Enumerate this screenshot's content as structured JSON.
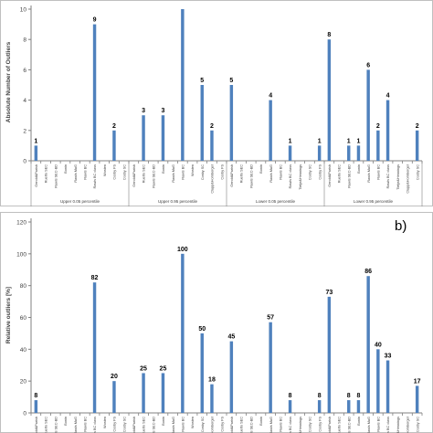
{
  "chart_data": [
    {
      "type": "bar",
      "panel_label": "",
      "ylabel": "Absolute Number of Outliers",
      "xlabel": "",
      "ylim": [
        0,
        10
      ],
      "yticks": [
        0,
        2,
        4,
        6,
        8,
        10
      ],
      "grid": false,
      "bar_color": "#4f81bd",
      "groups": [
        {
          "label": "Upper 0.05 percentile",
          "start": 0,
          "end": 9
        },
        {
          "label": "Upper 0.95 percentile",
          "start": 10,
          "end": 19
        },
        {
          "label": "Lower 0.05 percentile",
          "start": 20,
          "end": 29
        },
        {
          "label": "Lower 0.95 percentile",
          "start": 30,
          "end": 39
        }
      ],
      "categories": [
        "Gerold&Parish",
        "Ruerto SEC",
        "Rawls SEC-BD",
        "Bonin",
        "Rawls MaG",
        "Rawls BC",
        "Rawls BC class",
        "Wosten",
        "Cosby FS",
        "Cosby SC",
        "Gerold&Parish",
        "Ruerto SEC",
        "Rawls SEC-BD",
        "Bonin",
        "Rawls MaG",
        "Rawls BC",
        "Wosten",
        "Cosby SC",
        "Clapp&Hornberger",
        "Cosby FS",
        "Gerold&Parish",
        "Ruerto SEC",
        "Rawls SEC-BD",
        "Bonin",
        "Rawls MaG",
        "Rawls BC",
        "Rawls BC class",
        "Tietje&Hennings",
        "Cosby SC",
        "Cosby FS",
        "Gerold&Parish",
        "Ruerto SEC",
        "Rawls SEC-BD",
        "Bonin",
        "Rawls MaG",
        "Rawls BC",
        "Rawls BC class",
        "Tietje&Hennings",
        "Clapp&Hornberger",
        "Cosby SC"
      ],
      "values": [
        1,
        0,
        0,
        0,
        0,
        0,
        9,
        0,
        2,
        0,
        0,
        3,
        0,
        3,
        0,
        11,
        0,
        5,
        2,
        0,
        5,
        0,
        0,
        0,
        4,
        0,
        1,
        0,
        0,
        1,
        8,
        0,
        1,
        1,
        6,
        2,
        4,
        0,
        0,
        2
      ],
      "data_labels": [
        "1",
        "",
        "",
        "",
        "",
        "",
        "9",
        "",
        "2",
        "",
        "",
        "3",
        "",
        "3",
        "",
        "",
        "",
        "5",
        "2",
        "",
        "5",
        "",
        "",
        "",
        "4",
        "",
        "1",
        "",
        "",
        "1",
        "8",
        "",
        "1",
        "1",
        "6",
        "2",
        "4",
        "",
        "",
        "2"
      ]
    },
    {
      "type": "bar",
      "panel_label": "b)",
      "ylabel": "Relative outliers [%]",
      "xlabel": "",
      "ylim": [
        0,
        120
      ],
      "yticks": [
        0,
        20,
        40,
        60,
        80,
        100,
        120
      ],
      "grid": false,
      "bar_color": "#4f81bd",
      "categories": [
        "Gerold&Parish",
        "Ruerto SEC",
        "Rawls SEC-BD",
        "Bonin",
        "Rawls MaG",
        "Rawls BC",
        "Rawls BC class",
        "Wosten",
        "Cosby FS",
        "Cosby SC",
        "Gerold&Parish",
        "Ruerto SEC",
        "Rawls SEC-BD",
        "Bonin",
        "Rawls MaG",
        "Rawls BC",
        "Wosten",
        "Cosby SC",
        "Clapp&Hornberger",
        "Cosby FS",
        "Gerold&Parish",
        "Ruerto SEC",
        "Rawls SEC-BD",
        "Bonin",
        "Rawls MaG",
        "Rawls BC",
        "Rawls BC class",
        "Tietje&Hennings",
        "Cosby SC",
        "Cosby FS",
        "Gerold&Parish",
        "Ruerto SEC",
        "Rawls SEC-BD",
        "Bonin",
        "Rawls MaG",
        "Rawls BC",
        "Rawls BC class",
        "Tietje&Hennings",
        "Clapp&Hornberger",
        "Cosby SC"
      ],
      "values": [
        8,
        0,
        0,
        0,
        0,
        0,
        82,
        0,
        20,
        0,
        0,
        25,
        0,
        25,
        0,
        100,
        0,
        50,
        18,
        0,
        45,
        0,
        0,
        0,
        57,
        0,
        8,
        0,
        0,
        8,
        73,
        0,
        8,
        8,
        86,
        40,
        33,
        0,
        0,
        17
      ],
      "data_labels": [
        "8",
        "",
        "",
        "",
        "",
        "",
        "82",
        "",
        "20",
        "",
        "",
        "25",
        "",
        "25",
        "",
        "100",
        "",
        "50",
        "18",
        "",
        "45",
        "",
        "",
        "",
        "57",
        "",
        "8",
        "",
        "",
        "8",
        "73",
        "",
        "8",
        "8",
        "86",
        "40",
        "33",
        "",
        "",
        "17"
      ]
    }
  ]
}
